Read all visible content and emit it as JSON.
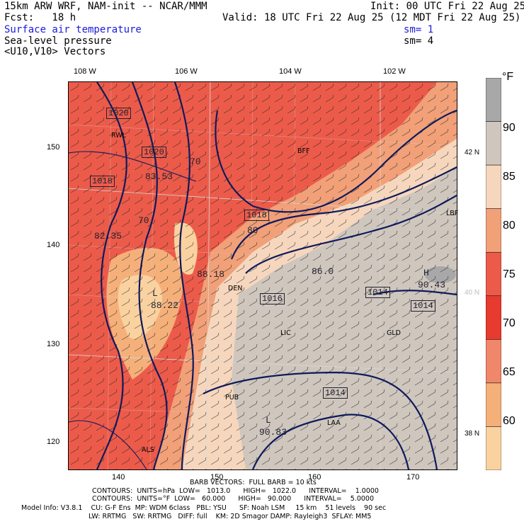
{
  "header": {
    "model": "15km ARW WRF, NAM-init -- NCAR/MMM",
    "init": "Init: 00 UTC Fri 22 Aug 25",
    "fcst": "Fcst:   18 h",
    "valid": "Valid: 18 UTC Fri 22 Aug 25 (12 MDT Fri 22 Aug 25)",
    "field1": "Surface air temperature",
    "field1_sm": "sm= 1",
    "field2": "Sea-level pressure",
    "field2_sm": "sm= 4",
    "field3": "<U10,V10> Vectors"
  },
  "lon_labels": [
    "108 W",
    "106 W",
    "104 W",
    "102 W"
  ],
  "lat_labels": [
    "42 N",
    "40 N",
    "38 N"
  ],
  "x_ticks": [
    "140",
    "150",
    "160",
    "170"
  ],
  "y_ticks": [
    "150",
    "140",
    "130",
    "120"
  ],
  "colorbar": {
    "unit": "°F",
    "labels": [
      "90",
      "85",
      "80",
      "75",
      "70",
      "65",
      "60"
    ],
    "colors": [
      "#a8a8a8",
      "#cfc6bd",
      "#f6d7bd",
      "#f1a078",
      "#ec5b4a",
      "#e63b2e",
      "#f0866a",
      "#f5b07a",
      "#fad2a0"
    ]
  },
  "map_labels": {
    "pressure_boxes": [
      "1020",
      "1020",
      "1018",
      "1018",
      "1016",
      "1014",
      "1014",
      "1014"
    ],
    "temp_labels": [
      "70",
      "70",
      "80",
      "83.53",
      "82.35",
      "86.0",
      "88.18"
    ],
    "high_label": "H",
    "high_value": "90.43",
    "low_label": "L",
    "low_value1": "88.22",
    "low_value2": "90.83",
    "cities": [
      "RWL",
      "BFF",
      "DEN",
      "LIC",
      "PUB",
      "LAA",
      "GLD",
      "ALS",
      "LBF"
    ]
  },
  "footer": {
    "barbs": "BARB VECTORS:  FULL BARB = 10 kts",
    "contours1": "CONTOURS:  UNITS=hPa  LOW=   1013.0      HIGH=   1022.0      INTERVAL=    1.0000",
    "contours2": "CONTOURS:  UNITS=°F  LOW=   60.000      HIGH=   90.000      INTERVAL=    5.0000",
    "model_info1": "Model Info: V3.8.1    CU: G-F Ens  MP: WDM 6class   PBL: YSU      SF: Noah LSM     15 km    51 levels    90 sec",
    "model_info2": "LW: RRTMG   SW: RRTMG   DIFF: full    KM: 2D Smagor DAMP: Rayleigh3  SFLAY: MM5"
  }
}
